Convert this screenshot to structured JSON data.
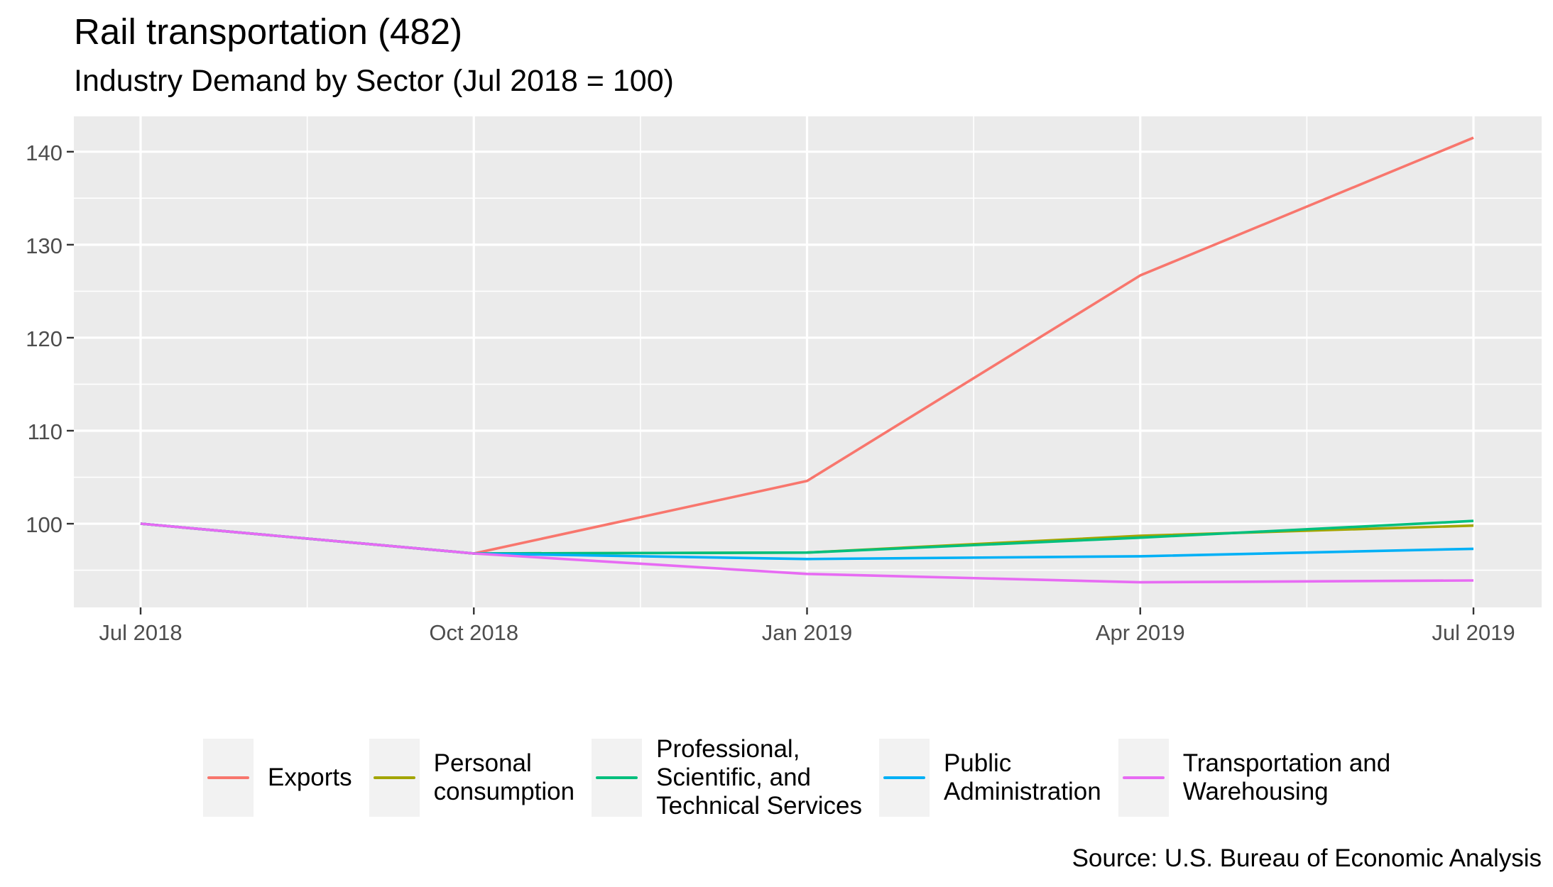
{
  "chart_data": {
    "type": "line",
    "title": "Rail transportation (482)",
    "subtitle": "Industry Demand by Sector (Jul 2018 = 100)",
    "caption": "Source: U.S. Bureau of Economic Analysis",
    "xlabel": "",
    "ylabel": "",
    "x": [
      "Jul 2018",
      "Oct 2018",
      "Jan 2019",
      "Apr 2019",
      "Jul 2019"
    ],
    "ylim": [
      91,
      143.8
    ],
    "yticks": [
      100,
      110,
      120,
      130,
      140
    ],
    "grid": true,
    "legend_position": "bottom",
    "series": [
      {
        "name": "Exports",
        "label": "Exports",
        "color": "#F8766D",
        "values": [
          100,
          96.8,
          104.6,
          126.7,
          141.5
        ]
      },
      {
        "name": "Personal consumption",
        "label": "Personal\nconsumption",
        "color": "#A3A500",
        "values": [
          100,
          96.8,
          96.9,
          98.7,
          99.8
        ]
      },
      {
        "name": "Professional, Scientific, and Technical Services",
        "label": "Professional,\nScientific, and\nTechnical Services",
        "color": "#00BF7D",
        "values": [
          100,
          96.8,
          96.9,
          98.5,
          100.3
        ]
      },
      {
        "name": "Public Administration",
        "label": "Public\nAdministration",
        "color": "#00B0F6",
        "values": [
          100,
          96.8,
          96.2,
          96.5,
          97.3
        ]
      },
      {
        "name": "Transportation and Warehousing",
        "label": "Transportation and\nWarehousing",
        "color": "#E76BF3",
        "values": [
          100,
          96.8,
          94.6,
          93.7,
          93.9
        ]
      }
    ]
  }
}
